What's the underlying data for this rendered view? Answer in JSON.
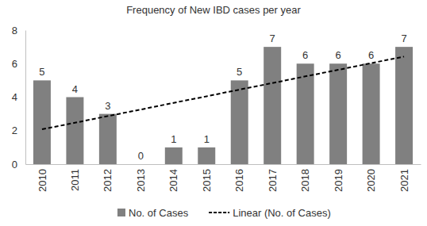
{
  "chart_data": {
    "type": "bar",
    "title": "Frequency of New IBD cases per year",
    "categories": [
      "2010",
      "2011",
      "2012",
      "2013",
      "2014",
      "2015",
      "2016",
      "2017",
      "2018",
      "2019",
      "2020",
      "2021"
    ],
    "series": [
      {
        "name": "No. of Cases",
        "type": "bar",
        "color": "#808080",
        "data_labels": true,
        "values": [
          5,
          4,
          3,
          0,
          1,
          1,
          5,
          7,
          6,
          6,
          6,
          7
        ]
      },
      {
        "name": "Linear (No. of Cases)",
        "type": "line",
        "color": "#000000",
        "line_style": "dashed",
        "values": [
          2.08,
          2.47,
          2.87,
          3.26,
          3.66,
          4.05,
          4.45,
          4.84,
          5.24,
          5.63,
          6.03,
          6.42
        ]
      }
    ],
    "ylim": [
      0,
      8
    ],
    "yticks": [
      0,
      2,
      4,
      6,
      8
    ],
    "grid": false,
    "legend": "bottom"
  }
}
